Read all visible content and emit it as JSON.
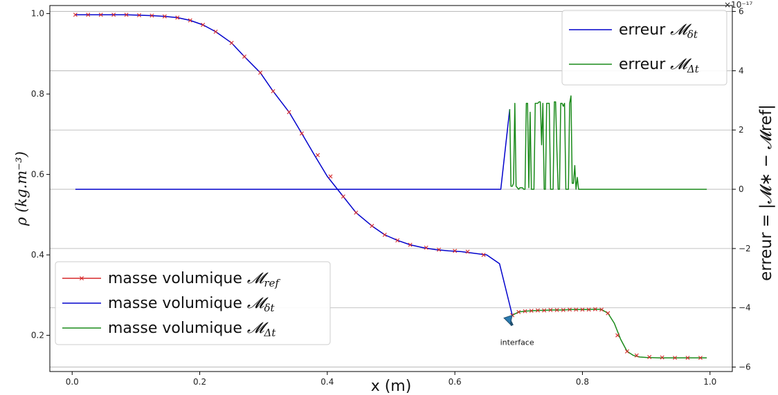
{
  "chart_data": {
    "type": "line",
    "xlabel": "x (m)",
    "ylabel_left": "ρ (kg.m⁻³)",
    "ylabel_right": "erreur = |𝓜∗ − 𝓜ref|",
    "xlim": [
      -0.035,
      1.035
    ],
    "ylim_left": [
      0.11,
      1.02
    ],
    "ylim_right": [
      -6.15,
      6.2
    ],
    "x_ticks": [
      0.0,
      0.2,
      0.4,
      0.6,
      0.8,
      1.0
    ],
    "x_tick_labels": [
      "0.0",
      "0.2",
      "0.4",
      "0.6",
      "0.8",
      "1.0"
    ],
    "y_left_ticks": [
      0.2,
      0.4,
      0.6,
      0.8,
      1.0
    ],
    "y_left_tick_labels": [
      "0.2",
      "0.4",
      "0.6",
      "0.8",
      "1.0"
    ],
    "y_right_ticks": [
      -6,
      -4,
      -2,
      0,
      2,
      4,
      6
    ],
    "y_right_tick_labels": [
      "−6",
      "−4",
      "−2",
      "0",
      "2",
      "4",
      "6"
    ],
    "y_right_multiplier": "×10⁻¹⁷",
    "grid": "horizontal lines at right-axis ticks",
    "annotation": {
      "text": "interface",
      "x": 0.69,
      "y": 0.25,
      "text_x": 0.677,
      "text_y": 0.19
    },
    "legends": [
      {
        "placement": "lower-left",
        "entries": [
          {
            "text": "masse volumique ",
            "math": "𝓜",
            "sub": "ref",
            "color": "#d62728",
            "marker": "x"
          },
          {
            "text": "masse volumique ",
            "math": "𝓜",
            "sub": "δt",
            "color": "#0000cc",
            "marker": ""
          },
          {
            "text": "masse volumique ",
            "math": "𝓜",
            "sub": "Δt",
            "color": "#1a8a1a",
            "marker": ""
          }
        ]
      },
      {
        "placement": "upper-right",
        "entries": [
          {
            "text": "erreur ",
            "math": "𝓜",
            "sub": "δt",
            "color": "#0000cc",
            "marker": ""
          },
          {
            "text": "erreur ",
            "math": "𝓜",
            "sub": "Δt",
            "color": "#1a8a1a",
            "marker": ""
          }
        ]
      }
    ],
    "series": [
      {
        "name": "masse volumique 𝓜δt",
        "axis": "left",
        "color": "#0000cc",
        "x": [
          0.005,
          0.025,
          0.045,
          0.065,
          0.085,
          0.105,
          0.125,
          0.145,
          0.165,
          0.185,
          0.205,
          0.225,
          0.25,
          0.27,
          0.295,
          0.315,
          0.34,
          0.36,
          0.38,
          0.4,
          0.425,
          0.445,
          0.47,
          0.49,
          0.51,
          0.53,
          0.55,
          0.57,
          0.59,
          0.61,
          0.63,
          0.65,
          0.67,
          0.69
        ],
        "y": [
          0.997,
          0.997,
          0.997,
          0.997,
          0.997,
          0.996,
          0.995,
          0.993,
          0.99,
          0.983,
          0.972,
          0.955,
          0.927,
          0.893,
          0.853,
          0.807,
          0.755,
          0.702,
          0.648,
          0.595,
          0.545,
          0.505,
          0.472,
          0.45,
          0.436,
          0.425,
          0.418,
          0.413,
          0.41,
          0.408,
          0.404,
          0.4,
          0.378,
          0.25
        ]
      },
      {
        "name": "masse volumique 𝓜Δt",
        "axis": "left",
        "color": "#1a8a1a",
        "x": [
          0.69,
          0.7,
          0.71,
          0.72,
          0.73,
          0.74,
          0.75,
          0.76,
          0.77,
          0.78,
          0.79,
          0.8,
          0.81,
          0.82,
          0.83,
          0.84,
          0.85,
          0.86,
          0.87,
          0.88,
          0.89,
          0.9,
          0.92,
          0.94,
          0.96,
          0.98,
          0.995
        ],
        "y": [
          0.25,
          0.258,
          0.26,
          0.261,
          0.262,
          0.262,
          0.263,
          0.263,
          0.263,
          0.264,
          0.264,
          0.264,
          0.264,
          0.265,
          0.264,
          0.255,
          0.23,
          0.19,
          0.16,
          0.15,
          0.146,
          0.145,
          0.144,
          0.144,
          0.144,
          0.144,
          0.144
        ]
      },
      {
        "name": "masse volumique 𝓜ref",
        "axis": "left",
        "color": "#d62728",
        "marker": "x",
        "x": [
          0.005,
          0.025,
          0.045,
          0.065,
          0.085,
          0.105,
          0.125,
          0.145,
          0.165,
          0.185,
          0.205,
          0.225,
          0.25,
          0.27,
          0.295,
          0.315,
          0.34,
          0.36,
          0.385,
          0.405,
          0.425,
          0.445,
          0.47,
          0.49,
          0.51,
          0.53,
          0.555,
          0.575,
          0.6,
          0.62,
          0.645,
          0.69,
          0.7,
          0.71,
          0.72,
          0.73,
          0.74,
          0.75,
          0.76,
          0.77,
          0.78,
          0.79,
          0.8,
          0.81,
          0.82,
          0.83,
          0.84,
          0.855,
          0.87,
          0.885,
          0.905,
          0.925,
          0.945,
          0.965,
          0.985
        ],
        "y": [
          0.997,
          0.997,
          0.997,
          0.997,
          0.997,
          0.996,
          0.995,
          0.993,
          0.99,
          0.983,
          0.972,
          0.955,
          0.927,
          0.893,
          0.853,
          0.807,
          0.755,
          0.702,
          0.648,
          0.595,
          0.545,
          0.505,
          0.472,
          0.45,
          0.436,
          0.425,
          0.418,
          0.413,
          0.41,
          0.408,
          0.4,
          0.25,
          0.258,
          0.26,
          0.261,
          0.262,
          0.262,
          0.263,
          0.263,
          0.263,
          0.264,
          0.264,
          0.264,
          0.264,
          0.265,
          0.264,
          0.255,
          0.2,
          0.16,
          0.15,
          0.146,
          0.145,
          0.144,
          0.144,
          0.144
        ]
      },
      {
        "name": "erreur 𝓜δt",
        "axis": "right",
        "color": "#0000cc",
        "x": [
          0.005,
          0.1,
          0.2,
          0.3,
          0.4,
          0.5,
          0.6,
          0.672,
          0.686
        ],
        "y": [
          0,
          0,
          0,
          0,
          0,
          0,
          0,
          0,
          2.7
        ]
      },
      {
        "name": "erreur 𝓜Δt",
        "axis": "right",
        "color": "#1a8a1a",
        "x": [
          0.686,
          0.688,
          0.69,
          0.692,
          0.694,
          0.696,
          0.698,
          0.7,
          0.702,
          0.704,
          0.706,
          0.708,
          0.71,
          0.712,
          0.714,
          0.716,
          0.718,
          0.72,
          0.722,
          0.724,
          0.726,
          0.728,
          0.73,
          0.732,
          0.734,
          0.736,
          0.738,
          0.74,
          0.742,
          0.744,
          0.746,
          0.748,
          0.75,
          0.752,
          0.754,
          0.756,
          0.758,
          0.76,
          0.762,
          0.764,
          0.766,
          0.768,
          0.77,
          0.772,
          0.774,
          0.776,
          0.778,
          0.78,
          0.782,
          0.784,
          0.786,
          0.788,
          0.79,
          0.792,
          0.794,
          0.796,
          0.798,
          0.8,
          0.802,
          0.804,
          0.806,
          0.808,
          0.81,
          0.812,
          0.814,
          0.816,
          0.818,
          0.82,
          0.822,
          0.824,
          0.826,
          0.828,
          0.83,
          0.832,
          0.834,
          0.836,
          0.838,
          0.84,
          0.842,
          0.844,
          0.846,
          0.848,
          0.85,
          0.852,
          0.854,
          0.856,
          0.858,
          0.86,
          0.862,
          0.864,
          0.866,
          0.868,
          0.87,
          0.9,
          0.95,
          0.995
        ],
        "y": [
          2.7,
          0.1,
          0.1,
          0.2,
          2.9,
          0.1,
          0.05,
          0.0,
          0.05,
          0.05,
          0.05,
          0.0,
          0.0,
          2.9,
          2.9,
          0.05,
          2.6,
          0.0,
          0.0,
          0.0,
          2.9,
          2.9,
          2.9,
          2.95,
          2.95,
          1.5,
          2.9,
          0.0,
          0.0,
          2.9,
          2.9,
          2.9,
          0.0,
          0.0,
          0.0,
          2.95,
          2.95,
          1.3,
          0.0,
          0.0,
          2.9,
          2.9,
          2.8,
          2.9,
          0.0,
          0.0,
          0.0,
          2.9,
          3.15,
          0.2,
          0.2,
          0.8,
          0.0,
          0.4,
          0.0,
          0.0,
          0.0,
          0.0,
          0.0,
          0.0,
          0.0,
          0.0,
          0.0,
          0.0,
          0.0,
          0.0,
          0.0,
          0.0,
          0.0,
          0.0,
          0.0,
          0.0,
          0.0,
          0.0,
          0.0,
          0.0,
          0.0,
          0.0,
          0.0,
          0.0,
          0.0,
          0.0,
          0.0,
          0.0,
          0.0,
          0.0,
          0.0,
          0.0,
          0.0,
          0.0,
          0.0,
          0.0,
          0.0,
          0.0,
          0.0,
          0.0
        ]
      }
    ]
  }
}
